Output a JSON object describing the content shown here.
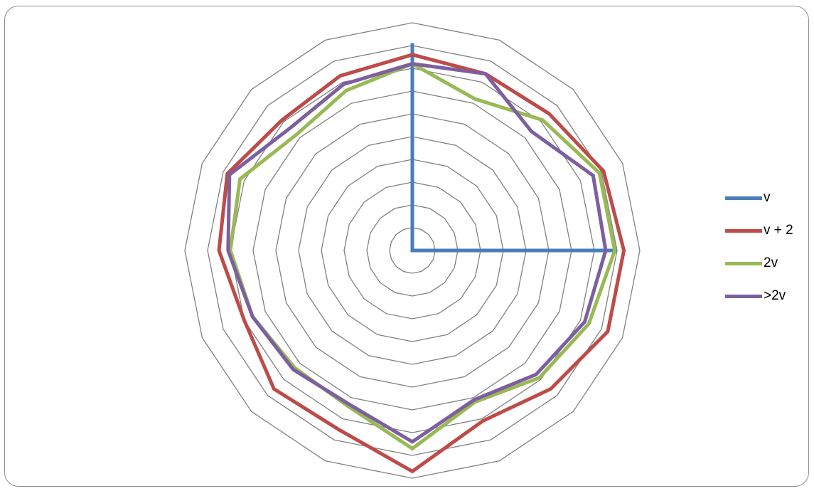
{
  "chart_data": {
    "type": "radar",
    "axis_count": 16,
    "rlim": [
      0,
      10
    ],
    "grid": true,
    "grid_color": "#808080",
    "legend_position": "right",
    "series": [
      {
        "name": "v",
        "color": "#4a7ebb",
        "values": [
          9.1,
          0,
          0,
          0,
          9.0,
          0,
          0,
          0,
          0,
          0,
          0,
          0,
          0,
          0,
          0,
          0
        ]
      },
      {
        "name": "v + 2",
        "color": "#be4b48",
        "values": [
          8.6,
          8.4,
          8.5,
          9.1,
          9.3,
          9.3,
          8.6,
          8.1,
          9.7,
          8.5,
          8.6,
          8.0,
          8.5,
          8.8,
          8.1,
          8.3
        ]
      },
      {
        "name": "2v",
        "color": "#98b954",
        "values": [
          8.2,
          7.2,
          8.1,
          8.9,
          8.9,
          8.4,
          7.9,
          7.2,
          8.7,
          7.4,
          7.3,
          7.6,
          8.0,
          8.2,
          7.2,
          7.6
        ]
      },
      {
        "name": ">2v",
        "color": "#7d5fa0",
        "values": [
          8.2,
          8.4,
          7.4,
          8.6,
          8.5,
          8.2,
          7.7,
          7.1,
          8.4,
          7.3,
          7.4,
          7.6,
          8.1,
          8.7,
          7.6,
          7.9
        ]
      }
    ]
  }
}
